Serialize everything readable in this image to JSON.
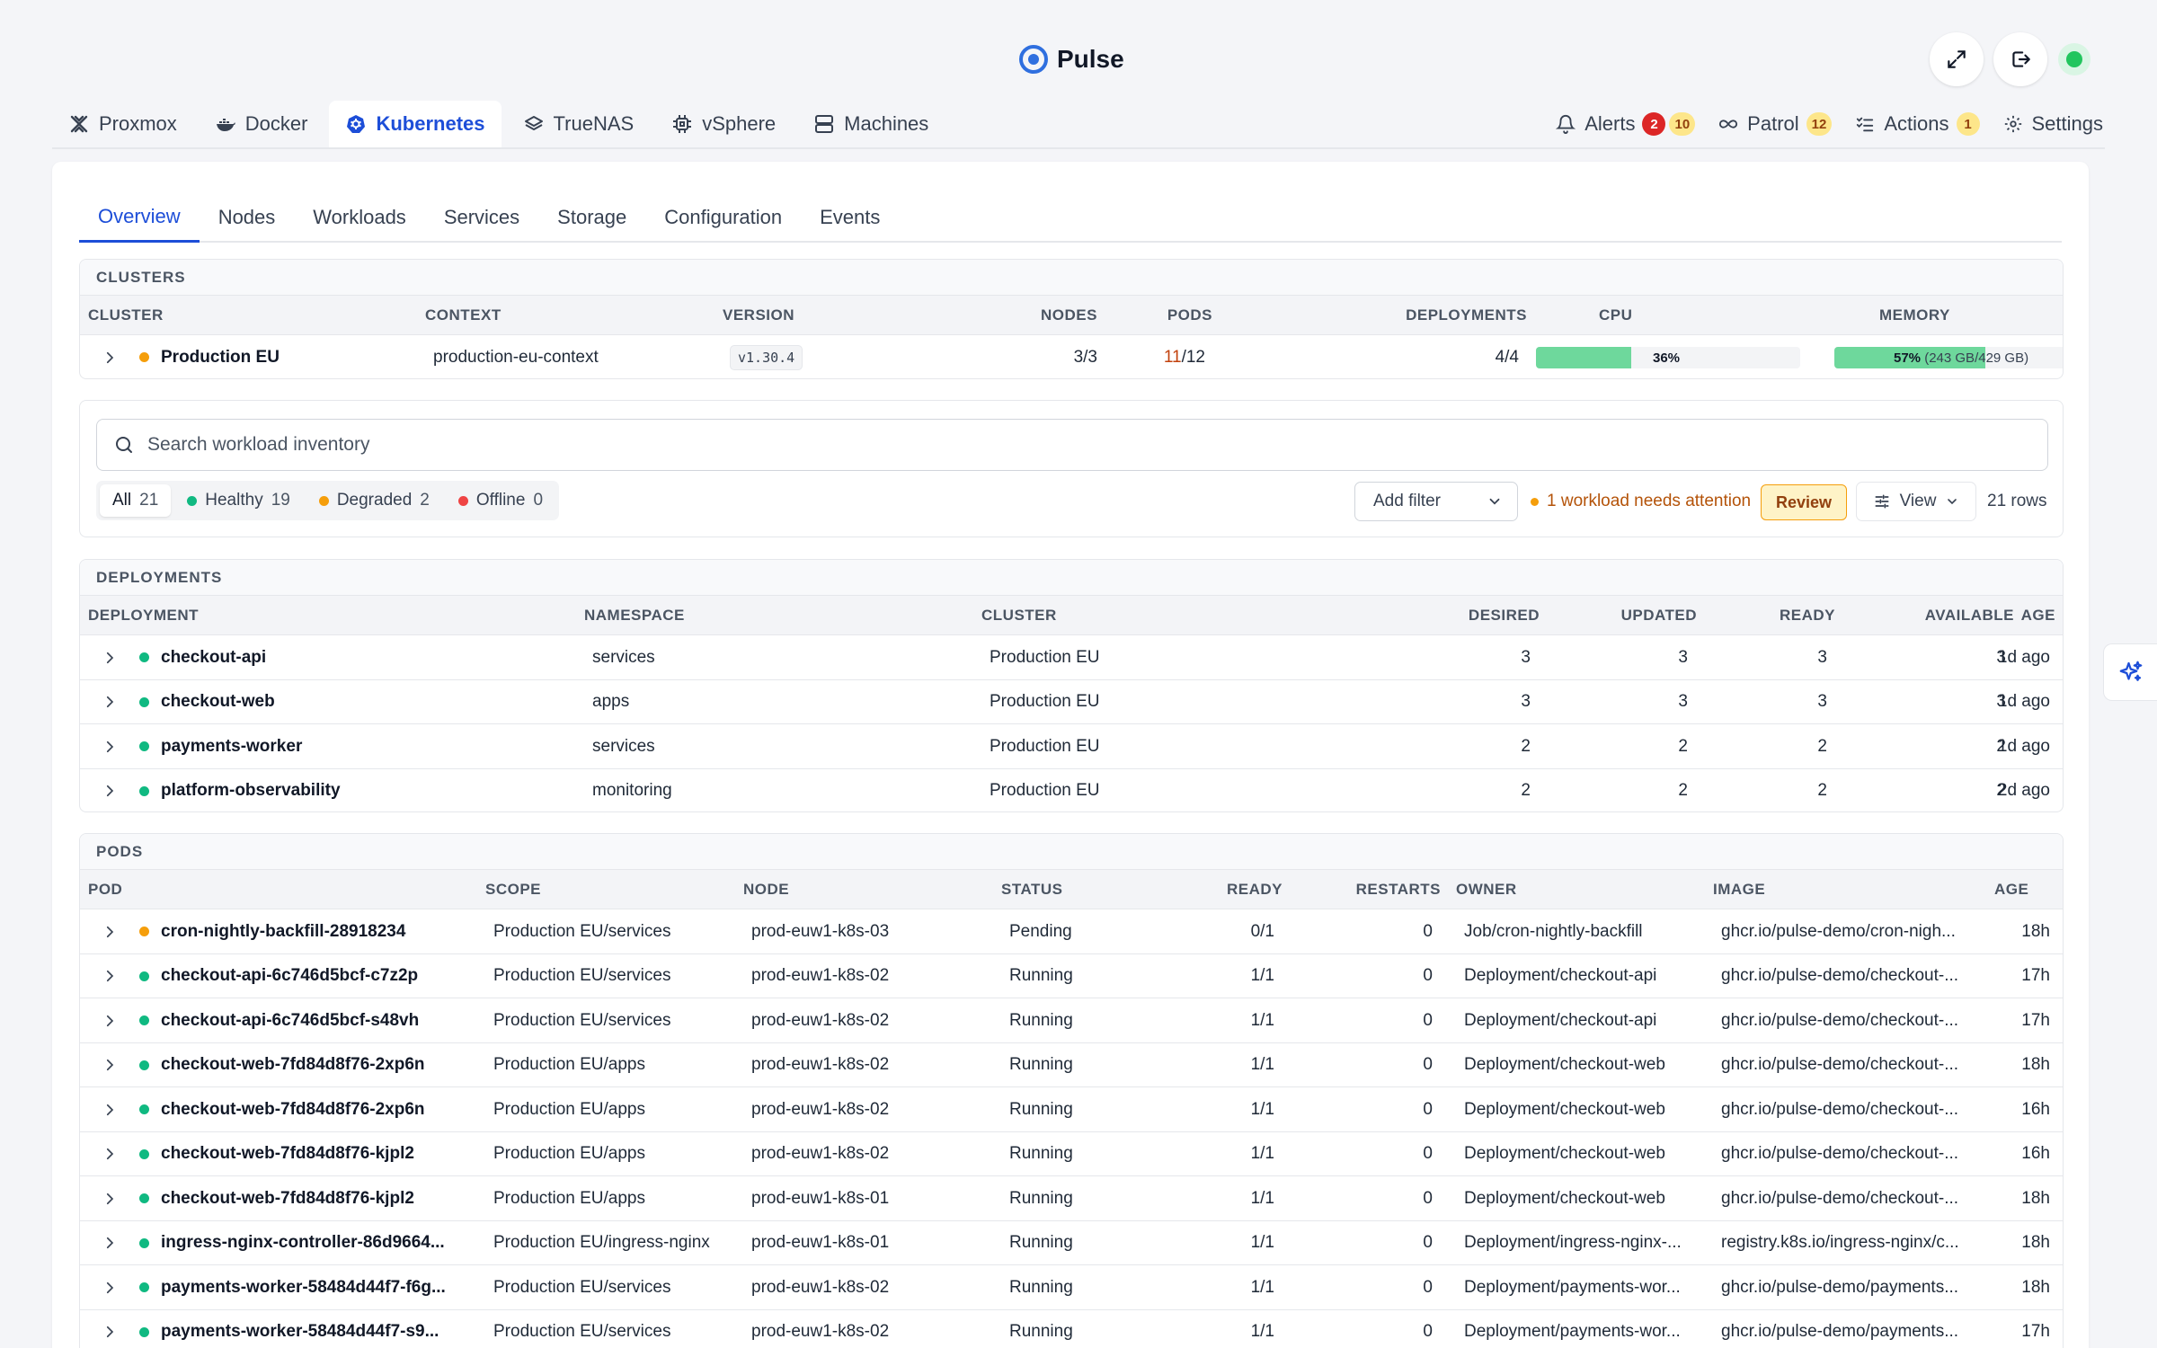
{
  "app": {
    "title": "Pulse"
  },
  "platform_tabs": [
    {
      "label": "Proxmox",
      "icon": "proxmox-icon"
    },
    {
      "label": "Docker",
      "icon": "docker-icon"
    },
    {
      "label": "Kubernetes",
      "icon": "kubernetes-icon",
      "active": true
    },
    {
      "label": "TrueNAS",
      "icon": "truenas-icon"
    },
    {
      "label": "vSphere",
      "icon": "vsphere-icon"
    },
    {
      "label": "Machines",
      "icon": "machines-icon"
    }
  ],
  "right_tabs": {
    "alerts": {
      "label": "Alerts",
      "badge_critical": "2",
      "badge_warning": "10"
    },
    "patrol": {
      "label": "Patrol",
      "badge": "12"
    },
    "actions": {
      "label": "Actions",
      "badge": "1"
    },
    "settings": {
      "label": "Settings"
    }
  },
  "sub_tabs": [
    "Overview",
    "Nodes",
    "Workloads",
    "Services",
    "Storage",
    "Configuration",
    "Events"
  ],
  "clusters": {
    "title": "CLUSTERS",
    "columns": [
      "CLUSTER",
      "CONTEXT",
      "VERSION",
      "NODES",
      "PODS",
      "DEPLOYMENTS",
      "CPU",
      "MEMORY"
    ],
    "rows": [
      {
        "name": "Production EU",
        "context": "production-eu-context",
        "version": "v1.30.4",
        "nodes": "3/3",
        "pods_ready": "11",
        "pods_total": "/12",
        "deployments": "4/4",
        "cpu": "36%",
        "cpu_fraction": 0.36,
        "memory": "57%",
        "memory_detail": "(243 GB/429 GB)",
        "memory_fraction": 0.57
      }
    ]
  },
  "filters": {
    "search_placeholder": "Search workload inventory",
    "segments": [
      {
        "label": "All",
        "count": "21"
      },
      {
        "label": "Healthy",
        "count": "19"
      },
      {
        "label": "Degraded",
        "count": "2"
      },
      {
        "label": "Offline",
        "count": "0"
      }
    ],
    "add_filter": "Add filter",
    "attention": "1 workload needs attention",
    "review": "Review",
    "view": "View",
    "row_count": "21 rows"
  },
  "deployments": {
    "title": "DEPLOYMENTS",
    "columns": [
      "DEPLOYMENT",
      "NAMESPACE",
      "CLUSTER",
      "DESIRED",
      "UPDATED",
      "READY",
      "AVAILABLE",
      "AGE"
    ],
    "rows": [
      {
        "name": "checkout-api",
        "namespace": "services",
        "cluster": "Production EU",
        "desired": "3",
        "updated": "3",
        "ready": "3",
        "available": "3",
        "age": "1d ago"
      },
      {
        "name": "checkout-web",
        "namespace": "apps",
        "cluster": "Production EU",
        "desired": "3",
        "updated": "3",
        "ready": "3",
        "available": "3",
        "age": "1d ago"
      },
      {
        "name": "payments-worker",
        "namespace": "services",
        "cluster": "Production EU",
        "desired": "2",
        "updated": "2",
        "ready": "2",
        "available": "2",
        "age": "1d ago"
      },
      {
        "name": "platform-observability",
        "namespace": "monitoring",
        "cluster": "Production EU",
        "desired": "2",
        "updated": "2",
        "ready": "2",
        "available": "2",
        "age": "2d ago"
      }
    ]
  },
  "pods": {
    "title": "PODS",
    "columns": [
      "POD",
      "SCOPE",
      "NODE",
      "STATUS",
      "READY",
      "RESTARTS",
      "OWNER",
      "IMAGE",
      "AGE"
    ],
    "rows": [
      {
        "name": "cron-nightly-backfill-28918234",
        "health": "amber",
        "scope": "Production EU/services",
        "node": "prod-euw1-k8s-03",
        "status": "Pending",
        "ready": "0/1",
        "restarts": "0",
        "owner": "Job/cron-nightly-backfill",
        "image": "ghcr.io/pulse-demo/cron-nigh...",
        "age": "18h"
      },
      {
        "name": "checkout-api-6c746d5bcf-c7z2p",
        "health": "green",
        "scope": "Production EU/services",
        "node": "prod-euw1-k8s-02",
        "status": "Running",
        "ready": "1/1",
        "restarts": "0",
        "owner": "Deployment/checkout-api",
        "image": "ghcr.io/pulse-demo/checkout-...",
        "age": "17h"
      },
      {
        "name": "checkout-api-6c746d5bcf-s48vh",
        "health": "green",
        "scope": "Production EU/services",
        "node": "prod-euw1-k8s-02",
        "status": "Running",
        "ready": "1/1",
        "restarts": "0",
        "owner": "Deployment/checkout-api",
        "image": "ghcr.io/pulse-demo/checkout-...",
        "age": "17h"
      },
      {
        "name": "checkout-web-7fd84d8f76-2xp6n",
        "health": "green",
        "scope": "Production EU/apps",
        "node": "prod-euw1-k8s-02",
        "status": "Running",
        "ready": "1/1",
        "restarts": "0",
        "owner": "Deployment/checkout-web",
        "image": "ghcr.io/pulse-demo/checkout-...",
        "age": "18h"
      },
      {
        "name": "checkout-web-7fd84d8f76-2xp6n",
        "health": "green",
        "scope": "Production EU/apps",
        "node": "prod-euw1-k8s-02",
        "status": "Running",
        "ready": "1/1",
        "restarts": "0",
        "owner": "Deployment/checkout-web",
        "image": "ghcr.io/pulse-demo/checkout-...",
        "age": "16h"
      },
      {
        "name": "checkout-web-7fd84d8f76-kjpl2",
        "health": "green",
        "scope": "Production EU/apps",
        "node": "prod-euw1-k8s-02",
        "status": "Running",
        "ready": "1/1",
        "restarts": "0",
        "owner": "Deployment/checkout-web",
        "image": "ghcr.io/pulse-demo/checkout-...",
        "age": "16h"
      },
      {
        "name": "checkout-web-7fd84d8f76-kjpl2",
        "health": "green",
        "scope": "Production EU/apps",
        "node": "prod-euw1-k8s-01",
        "status": "Running",
        "ready": "1/1",
        "restarts": "0",
        "owner": "Deployment/checkout-web",
        "image": "ghcr.io/pulse-demo/checkout-...",
        "age": "18h"
      },
      {
        "name": "ingress-nginx-controller-86d9664...",
        "health": "green",
        "scope": "Production EU/ingress-nginx",
        "node": "prod-euw1-k8s-01",
        "status": "Running",
        "ready": "1/1",
        "restarts": "0",
        "owner": "Deployment/ingress-nginx-...",
        "image": "registry.k8s.io/ingress-nginx/c...",
        "age": "18h"
      },
      {
        "name": "payments-worker-58484d44f7-f6g...",
        "health": "green",
        "scope": "Production EU/services",
        "node": "prod-euw1-k8s-02",
        "status": "Running",
        "ready": "1/1",
        "restarts": "0",
        "owner": "Deployment/payments-wor...",
        "image": "ghcr.io/pulse-demo/payments...",
        "age": "18h"
      },
      {
        "name": "payments-worker-58484d44f7-s9...",
        "health": "green",
        "scope": "Production EU/services",
        "node": "prod-euw1-k8s-02",
        "status": "Running",
        "ready": "1/1",
        "restarts": "0",
        "owner": "Deployment/payments-wor...",
        "image": "ghcr.io/pulse-demo/payments...",
        "age": "17h"
      }
    ]
  },
  "colors": {
    "accent": "#1d4ed8",
    "healthy": "#10b981",
    "degraded": "#f59e0b",
    "offline": "#ef4444",
    "alert_red": "#dc2626"
  },
  "icons": [
    "expand-icon",
    "logout-icon",
    "bell-icon",
    "infinity-icon",
    "checklist-icon",
    "gear-icon",
    "search-icon",
    "chevron-down-icon",
    "sliders-icon",
    "sparkles-icon",
    "chevron-right-icon"
  ]
}
